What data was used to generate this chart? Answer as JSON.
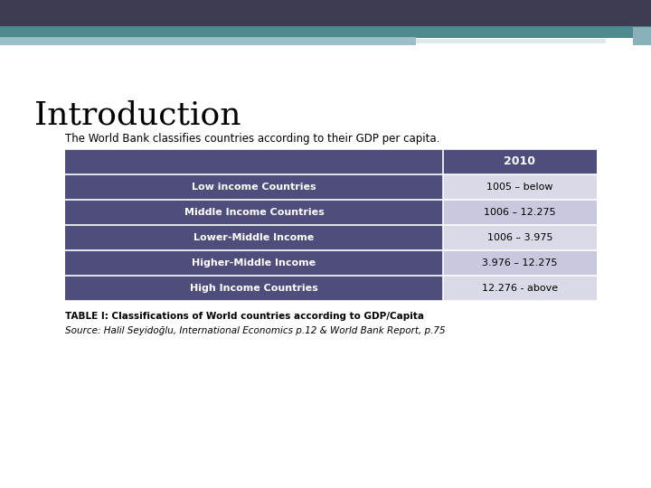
{
  "title": "Introduction",
  "subtitle": "The World Bank classifies countries according to their GDP per capita.",
  "header": [
    "",
    "2010"
  ],
  "rows": [
    [
      "Low income Countries",
      "1005 – below"
    ],
    [
      "Middle Income Countries",
      "1006 – 12.275"
    ],
    [
      "Lower-Middle Income",
      "1006 – 3.975"
    ],
    [
      "Higher-Middle Income",
      "3.976 – 12.275"
    ],
    [
      "High Income Countries",
      "12.276 - above"
    ]
  ],
  "table_caption_bold": "TABLE I: Classifications of World countries according to GDP/Capita",
  "table_caption_italic": "Source: Halil Seyidoğlu, International Economics p.12 & World Bank Report, p.75",
  "header_bg": "#4e4d7b",
  "header_text_color": "#ffffff",
  "row_bg_left": "#4e4d7b",
  "row_bg_right_odd": "#d9d9e8",
  "row_bg_right_even": "#c8c8df",
  "row_text_left": "#ffffff",
  "row_text_right": "#000000",
  "top_bar_dark": "#3d3c52",
  "top_bar_teal": "#4e8a8f",
  "top_bar_light": "#9bbfc6",
  "top_bar_white_accent": "#dce8ec",
  "bg_color": "#ffffff",
  "title_fontsize": 26,
  "subtitle_fontsize": 8.5,
  "table_fontsize": 8,
  "caption_fontsize": 7.5
}
